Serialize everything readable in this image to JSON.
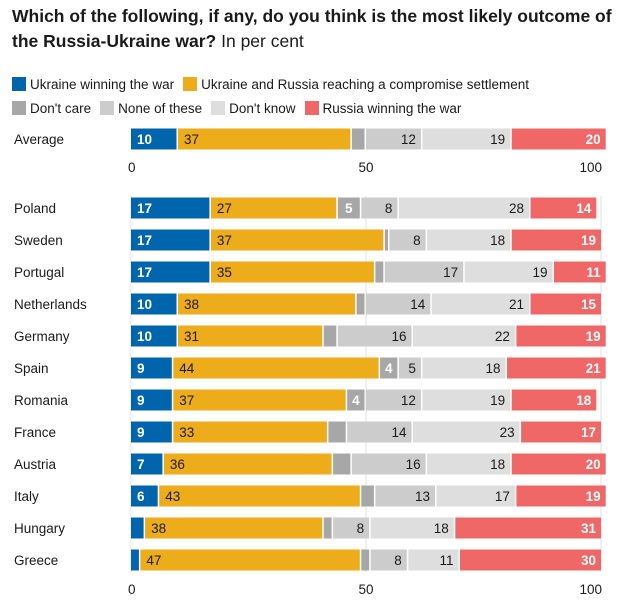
{
  "title": {
    "bold": "Which of the following, if any, do you think is the most likely outcome of the Russia-Ukraine war?",
    "sub": "In per cent"
  },
  "legend": [
    {
      "label": "Ukraine winning the war",
      "color": "#0065ad"
    },
    {
      "label": "Ukraine and Russia reaching a compromise settlement",
      "color": "#edac1a"
    },
    {
      "label": "Don't care",
      "color": "#a7a7a7"
    },
    {
      "label": "None of these",
      "color": "#cccccc"
    },
    {
      "label": "Don't know",
      "color": "#dedede"
    },
    {
      "label": "Russia winning the war",
      "color": "#f06767"
    }
  ],
  "chart_data": {
    "type": "bar",
    "orientation": "horizontal-stacked",
    "title": "Which of the following, if any, do you think is the most likely outcome of the Russia-Ukraine war? In per cent",
    "xlabel": "",
    "ylabel": "",
    "xlim": [
      0,
      100
    ],
    "xticks": [
      0,
      50,
      100
    ],
    "grid": true,
    "legend_position": "top",
    "series": [
      {
        "name": "Ukraine winning the war",
        "color": "#0065ad",
        "label_color": "#ffffff",
        "label_bold": true
      },
      {
        "name": "Ukraine and Russia reaching a compromise settlement",
        "color": "#edac1a",
        "label_color": "#1a1a1a",
        "label_bold": false
      },
      {
        "name": "Don't care",
        "color": "#a7a7a7",
        "label_color": "#ffffff",
        "label_bold": true
      },
      {
        "name": "None of these",
        "color": "#cccccc",
        "label_color": "#1a1a1a",
        "label_bold": false
      },
      {
        "name": "Don't know",
        "color": "#dedede",
        "label_color": "#1a1a1a",
        "label_bold": false
      },
      {
        "name": "Russia winning the war",
        "color": "#f06767",
        "label_color": "#ffffff",
        "label_bold": true
      }
    ],
    "summary": {
      "category": "Average",
      "values": [
        10,
        37,
        3,
        12,
        19,
        20
      ],
      "labels": [
        "10",
        "37",
        "",
        "12",
        "19",
        "20"
      ]
    },
    "categories": [
      "Poland",
      "Sweden",
      "Portugal",
      "Netherlands",
      "Germany",
      "Spain",
      "Romania",
      "France",
      "Austria",
      "Italy",
      "Hungary",
      "Greece"
    ],
    "rows": [
      {
        "values": [
          17,
          27,
          5,
          8,
          28,
          14
        ],
        "labels": [
          "17",
          "27",
          "5",
          "8",
          "28",
          "14"
        ]
      },
      {
        "values": [
          17,
          37,
          1,
          8,
          18,
          19
        ],
        "labels": [
          "17",
          "37",
          "",
          "8",
          "18",
          "19"
        ]
      },
      {
        "values": [
          17,
          35,
          2,
          17,
          19,
          11
        ],
        "labels": [
          "17",
          "35",
          "",
          "17",
          "19",
          "11"
        ]
      },
      {
        "values": [
          10,
          38,
          2,
          14,
          21,
          15
        ],
        "labels": [
          "10",
          "38",
          "",
          "14",
          "21",
          "15"
        ]
      },
      {
        "values": [
          10,
          31,
          3,
          16,
          22,
          19
        ],
        "labels": [
          "10",
          "31",
          "",
          "16",
          "22",
          "19"
        ]
      },
      {
        "values": [
          9,
          44,
          4,
          5,
          18,
          21
        ],
        "labels": [
          "9",
          "44",
          "4",
          "5",
          "18",
          "21"
        ]
      },
      {
        "values": [
          9,
          37,
          4,
          12,
          19,
          18
        ],
        "labels": [
          "9",
          "37",
          "4",
          "12",
          "19",
          "18"
        ]
      },
      {
        "values": [
          9,
          33,
          4,
          14,
          23,
          17
        ],
        "labels": [
          "9",
          "33",
          "",
          "14",
          "23",
          "17"
        ]
      },
      {
        "values": [
          7,
          36,
          4,
          16,
          18,
          20
        ],
        "labels": [
          "7",
          "36",
          "",
          "16",
          "18",
          "20"
        ]
      },
      {
        "values": [
          6,
          43,
          3,
          13,
          17,
          19
        ],
        "labels": [
          "6",
          "43",
          "",
          "13",
          "17",
          "19"
        ]
      },
      {
        "values": [
          3,
          38,
          2,
          8,
          18,
          31
        ],
        "labels": [
          "",
          "38",
          "",
          "8",
          "18",
          "31"
        ]
      },
      {
        "values": [
          2,
          47,
          2,
          8,
          11,
          30
        ],
        "labels": [
          "",
          "47",
          "",
          "8",
          "11",
          "30"
        ]
      }
    ]
  }
}
